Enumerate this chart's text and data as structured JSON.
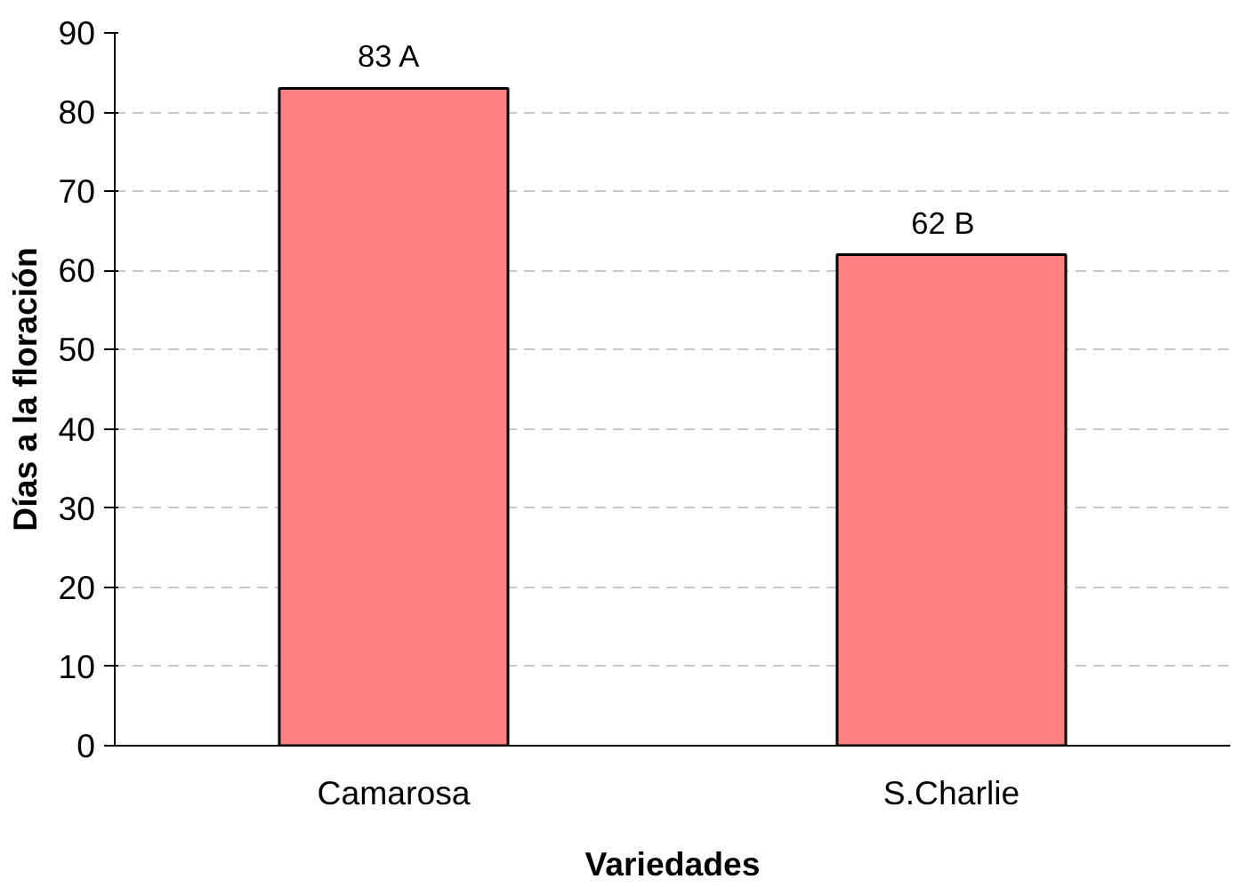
{
  "chart_data": {
    "type": "bar",
    "xlabel": "Variedades",
    "ylabel": "Días a la floración",
    "categories": [
      "Camarosa",
      "S.Charlie"
    ],
    "values": [
      83,
      62
    ],
    "value_labels": [
      "83  A",
      "62   B"
    ],
    "color": "#ff8080",
    "ylim": [
      0,
      90
    ],
    "yticks": [
      0,
      10,
      20,
      30,
      40,
      50,
      60,
      70,
      80,
      90
    ],
    "grid": "y"
  }
}
